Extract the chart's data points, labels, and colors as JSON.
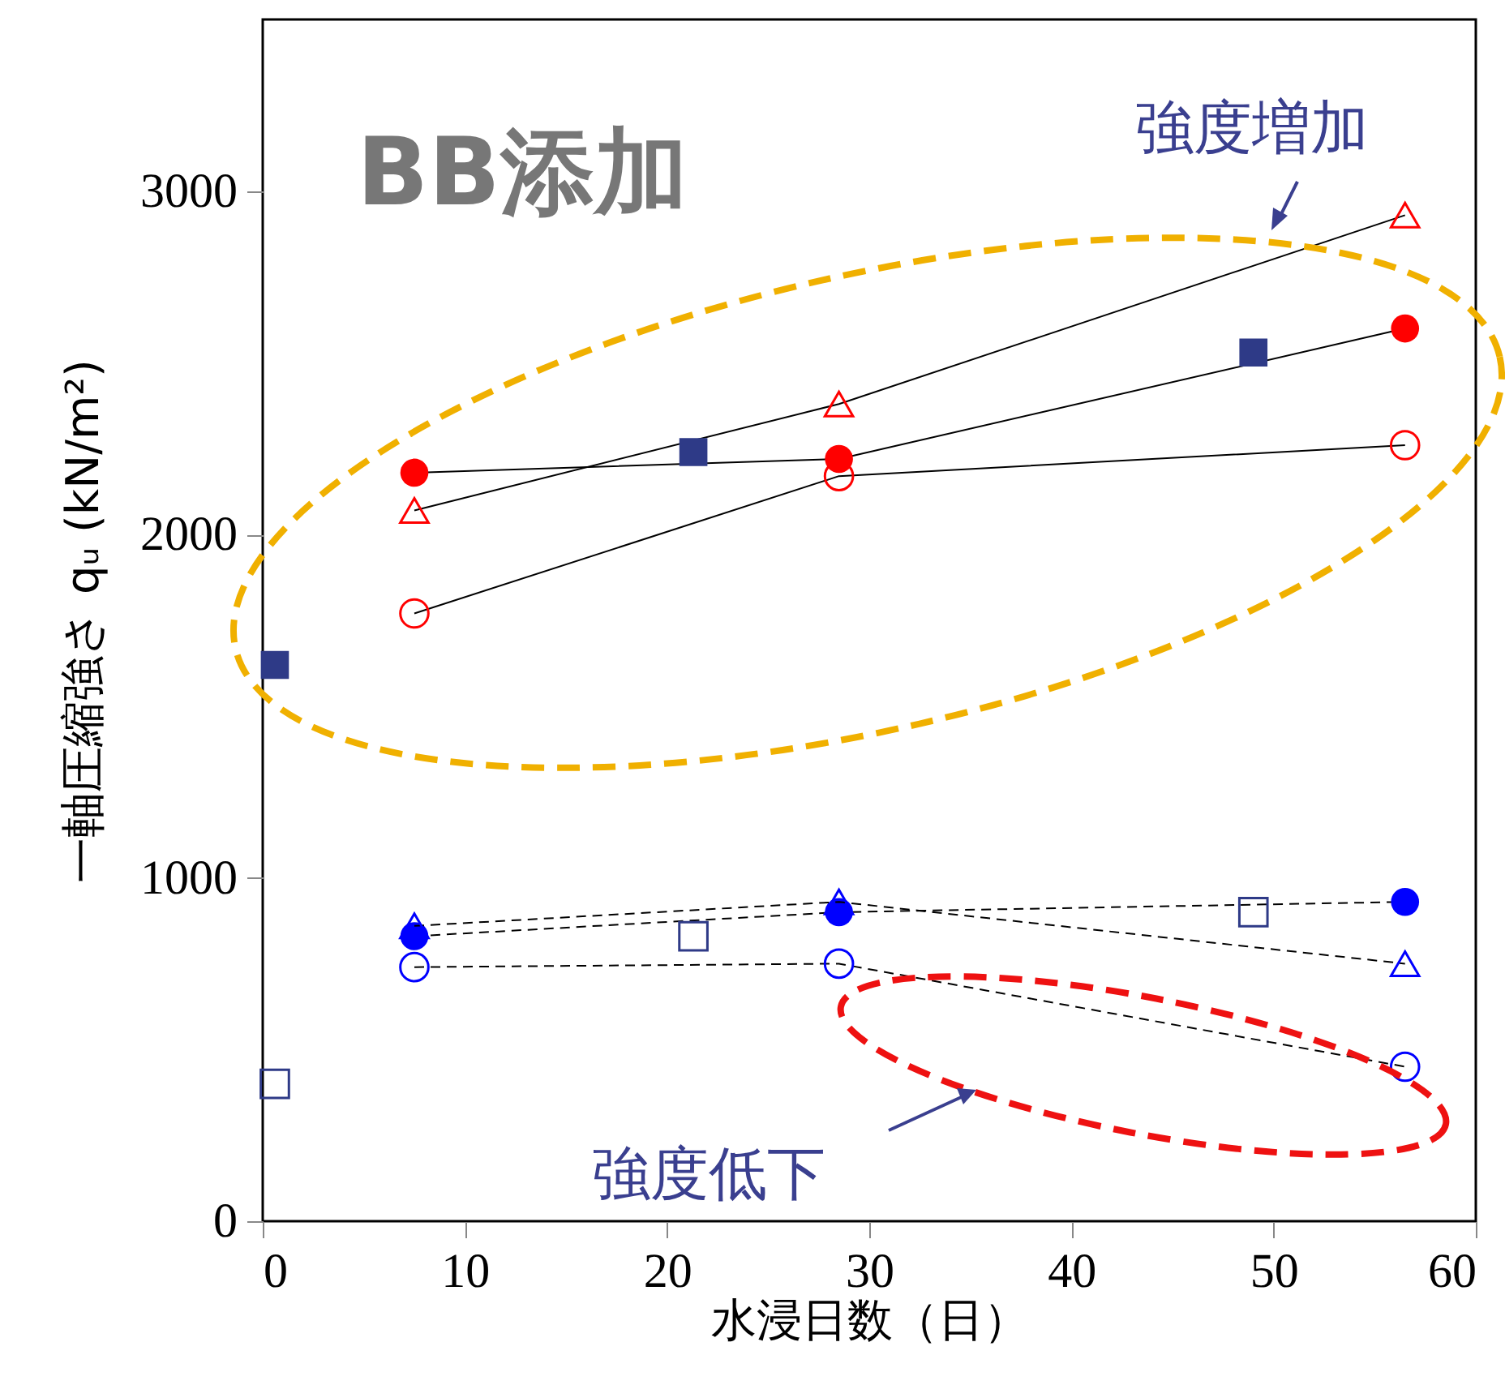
{
  "chart_data": {
    "type": "line",
    "xlabel": "水浸日数（日）",
    "ylabel": "一軸圧縮強さ qᵤ (kN/m²)",
    "xlim": [
      0,
      60
    ],
    "xticks": [
      0,
      10,
      20,
      30,
      40,
      50,
      60
    ],
    "ylim": [
      0,
      3500
    ],
    "yticks": [
      0,
      1000,
      2000,
      3000
    ],
    "grid": false,
    "annotations": [
      "BB添加",
      "強度増加",
      "強度低下"
    ],
    "series": [
      {
        "color": "#ff0000",
        "marker": "circle",
        "line_style": "solid",
        "x": [
          7.5,
          28.5,
          56.5
        ],
        "values": [
          2180,
          2220,
          2600
        ]
      },
      {
        "color": "#ff0000",
        "marker": "circle",
        "line_style": "solid",
        "x": [
          7.5,
          28.5,
          56.5
        ],
        "values": [
          1770,
          2170,
          2260
        ]
      },
      {
        "color": "#ff0000",
        "marker": "triangle",
        "line_style": "solid",
        "x": [
          7.5,
          28.5,
          56.5
        ],
        "values": [
          2070,
          2380,
          2930
        ]
      },
      {
        "type": "scatter",
        "color": "#2e3a87",
        "marker": "square",
        "x": [
          0.6,
          21.3,
          49
        ],
        "values": [
          1620,
          2240,
          2530
        ]
      },
      {
        "color": "#0000ff",
        "marker": "circle",
        "line_style": "dashed",
        "x": [
          7.5,
          28.5,
          56.5
        ],
        "values": [
          830,
          900,
          930
        ]
      },
      {
        "color": "#0000ff",
        "marker": "circle",
        "line_style": "dashed",
        "x": [
          7.5,
          28.5,
          56.5
        ],
        "values": [
          740,
          750,
          450
        ]
      },
      {
        "color": "#0000ff",
        "marker": "triangle",
        "line_style": "dashed",
        "x": [
          7.5,
          28.5,
          56.5
        ],
        "values": [
          860,
          930,
          750
        ]
      },
      {
        "type": "scatter",
        "color": "#2e3a87",
        "marker": "square",
        "x": [
          0.6,
          21.3,
          49
        ],
        "values": [
          400,
          830,
          900
        ]
      }
    ]
  }
}
